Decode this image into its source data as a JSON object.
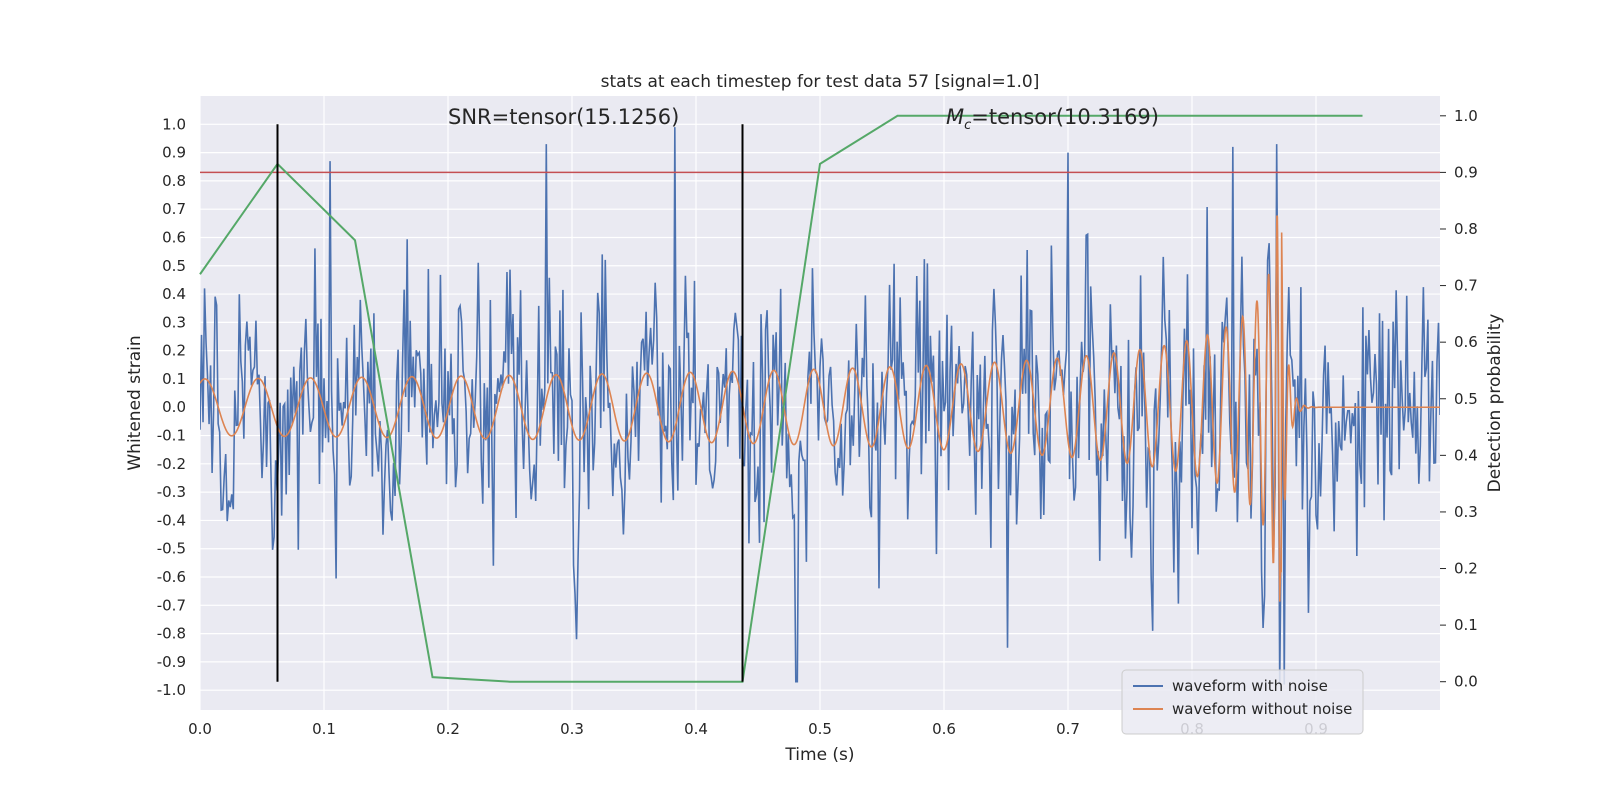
{
  "chart_data": {
    "type": "line",
    "title": "stats at each timestep for test data 57 [signal=1.0]",
    "xlabel": "Time (s)",
    "ylabel_left": "Whitened strain",
    "ylabel_right": "Detection probability",
    "xlim": [
      0.0,
      1.0
    ],
    "ylim_left": [
      -1.07,
      1.1
    ],
    "ylim_right": [
      -0.05,
      1.035
    ],
    "x_ticks": [
      0.0,
      0.1,
      0.2,
      0.3,
      0.4,
      0.5,
      0.6,
      0.7,
      0.8,
      0.9
    ],
    "x_tick_labels": [
      "0.0",
      "0.1",
      "0.2",
      "0.3",
      "0.4",
      "0.5",
      "0.6",
      "0.7",
      "0.8",
      "0.9"
    ],
    "y_ticks_left": [
      1.0,
      0.9,
      0.8,
      0.7,
      0.6,
      0.5,
      0.4,
      0.3,
      0.2,
      0.1,
      0.0,
      -0.1,
      -0.2,
      -0.3,
      -0.4,
      -0.5,
      -0.6,
      -0.7,
      -0.8,
      -0.9,
      -1.0
    ],
    "y_tick_labels_left": [
      "1.0",
      "0.9",
      "0.8",
      "0.7",
      "0.6",
      "0.5",
      "0.4",
      "0.3",
      "0.2",
      "0.1",
      "0.0",
      "-0.1",
      "-0.2",
      "-0.3",
      "-0.4",
      "-0.5",
      "-0.6",
      "-0.7",
      "-0.8",
      "-0.9",
      "-1.0"
    ],
    "y_ticks_right": [
      1.0,
      0.9,
      0.8,
      0.7,
      0.6,
      0.5,
      0.4,
      0.3,
      0.2,
      0.1,
      0.0
    ],
    "y_tick_labels_right": [
      "1.0",
      "0.9",
      "0.8",
      "0.7",
      "0.6",
      "0.5",
      "0.4",
      "0.3",
      "0.2",
      "0.1",
      "0.0"
    ],
    "grid": true,
    "legend_position": "bottom-right",
    "annotations": [
      {
        "text": "SNR=tensor(15.1256)",
        "x": 0.2,
        "y": 1.03
      },
      {
        "text": "=tensor(10.3169)",
        "math_prefix": "M",
        "math_sub": "c",
        "x": 0.6,
        "y": 1.03
      }
    ],
    "threshold_line": {
      "axis": "right",
      "y": 0.9,
      "color": "#c44e52"
    },
    "vlines": [
      {
        "x": 0.0625,
        "ymin": -0.97,
        "ymax": 1.0,
        "color": "#000000"
      },
      {
        "x": 0.4375,
        "ymin": -0.97,
        "ymax": 1.0,
        "color": "#000000"
      }
    ],
    "series": [
      {
        "name": "waveform with noise",
        "axis": "left",
        "color": "#4c72b0",
        "kind": "noise",
        "n_points": 820,
        "std": 0.22,
        "peaks": [
          {
            "x": 0.105,
            "y": 0.87
          },
          {
            "x": 0.279,
            "y": 0.93
          },
          {
            "x": 0.383,
            "y": 0.99
          },
          {
            "x": 0.7,
            "y": 0.9
          },
          {
            "x": 0.833,
            "y": 0.92
          },
          {
            "x": 0.868,
            "y": 0.93
          },
          {
            "x": 0.481,
            "y": -0.97
          },
          {
            "x": 0.651,
            "y": -0.85
          },
          {
            "x": 0.304,
            "y": -0.82
          },
          {
            "x": 0.857,
            "y": -0.78
          }
        ]
      },
      {
        "name": "waveform without noise",
        "axis": "left",
        "color": "#dd8452",
        "kind": "chirp",
        "t_merger": 0.872,
        "f_start": 23,
        "f_end": 160,
        "amp_start": 0.1,
        "amp_peak": 0.7
      },
      {
        "name": "",
        "axis": "right",
        "color": "#55a868",
        "kind": "probability",
        "x": [
          0.0,
          0.0625,
          0.125,
          0.1875,
          0.25,
          0.3125,
          0.375,
          0.4375,
          0.5,
          0.5625,
          0.625,
          0.6875,
          0.75,
          0.8125,
          0.875,
          0.9375
        ],
        "values": [
          0.72,
          0.915,
          0.78,
          0.008,
          0.0,
          0.0,
          0.0,
          0.0,
          0.915,
          1.0,
          1.0,
          1.0,
          1.0,
          1.0,
          1.0,
          1.0
        ]
      }
    ]
  }
}
